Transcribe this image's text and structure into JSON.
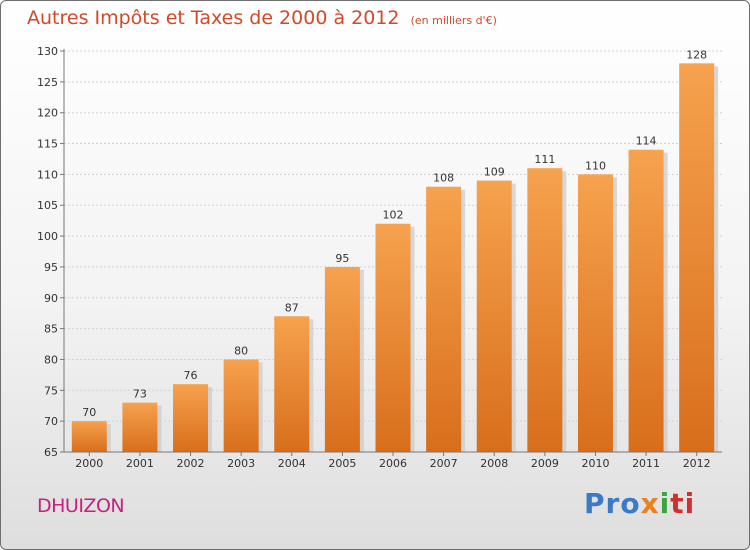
{
  "chart_data": {
    "type": "bar",
    "title": "Autres Impôts et Taxes de 2000 à 2012",
    "subtitle": "(en milliers d'€)",
    "categories": [
      "2000",
      "2001",
      "2002",
      "2003",
      "2004",
      "2005",
      "2006",
      "2007",
      "2008",
      "2009",
      "2010",
      "2011",
      "2012"
    ],
    "values": [
      70,
      73,
      76,
      80,
      87,
      95,
      102,
      108,
      109,
      111,
      110,
      114,
      128
    ],
    "ylim": [
      65,
      130
    ],
    "yticks": [
      65,
      70,
      75,
      80,
      85,
      90,
      95,
      100,
      105,
      110,
      115,
      120,
      125,
      130
    ],
    "grid": true,
    "bar_color": "#f09a45"
  },
  "footer": {
    "commune": "DHUIZON",
    "logo": [
      "Pro",
      "x",
      "i",
      "ti"
    ]
  }
}
